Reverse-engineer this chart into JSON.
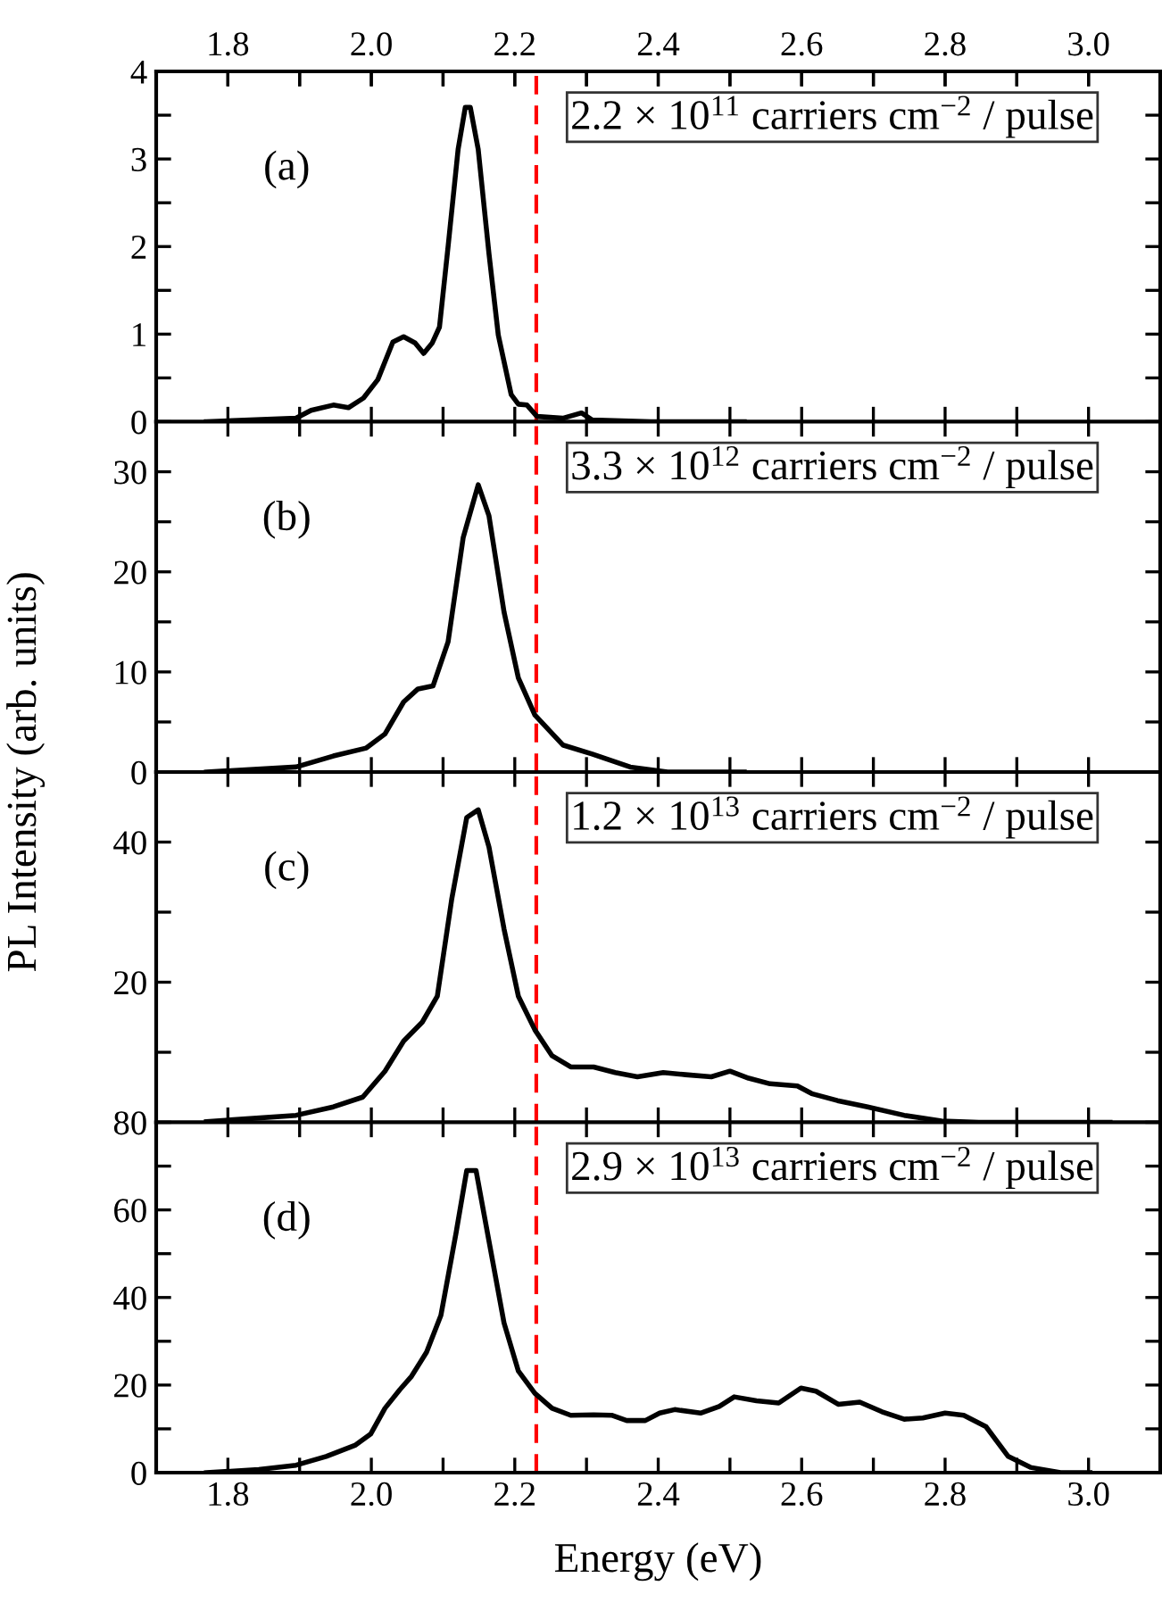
{
  "chart_data": [
    {
      "type": "line",
      "ylabel": "PL Intensity (arb. units)",
      "annotations": [
        "(a)",
        "2.2 × 10$^{11}$ carriers cm$^{−2}$ / pulse"
      ],
      "series": [
        {
          "color": "#000000",
          "x": [
            1.77,
            1.895,
            1.916,
            1.947,
            1.968,
            1.989,
            2.009,
            2.03,
            2.045,
            2.061,
            2.073,
            2.085,
            2.095,
            2.107,
            2.121,
            2.131,
            2.138,
            2.149,
            2.164,
            2.177,
            2.195,
            2.205,
            2.217,
            2.231,
            2.267,
            2.293,
            2.308,
            2.39,
            2.52
          ],
          "values": [
            0,
            0.04,
            0.13,
            0.19,
            0.16,
            0.27,
            0.48,
            0.91,
            0.97,
            0.9,
            0.78,
            0.9,
            1.08,
            2.0,
            3.11,
            3.59,
            3.59,
            3.11,
            1.92,
            0.99,
            0.31,
            0.2,
            0.19,
            0.06,
            0.04,
            0.1,
            0.02,
            0,
            0
          ]
        }
      ],
      "xlim": [
        1.7,
        3.1
      ],
      "xticks": [
        {
          "value": 1.8,
          "label": null
        },
        {
          "value": 1.9,
          "label": null
        },
        {
          "value": 2.0,
          "label": null
        },
        {
          "value": 2.1,
          "label": null
        },
        {
          "value": 2.2,
          "label": null
        },
        {
          "value": 2.3,
          "label": null
        },
        {
          "value": 2.4,
          "label": null
        },
        {
          "value": 2.5,
          "label": null
        },
        {
          "value": 2.6,
          "label": null
        },
        {
          "value": 2.7,
          "label": null
        },
        {
          "value": 2.8,
          "label": null
        },
        {
          "value": 2.9,
          "label": null
        },
        {
          "value": 3.0,
          "label": null
        }
      ],
      "x2lim": [
        1.7,
        3.1
      ],
      "x2ticks": [
        1.8,
        {
          "value": 1.9,
          "label": null
        },
        {
          "value": 2,
          "label": "2.0"
        },
        {
          "value": 2.1,
          "label": null
        },
        2.2,
        {
          "value": 2.3,
          "label": null
        },
        2.4,
        {
          "value": 2.5,
          "label": null
        },
        2.6,
        {
          "value": 2.7,
          "label": null
        },
        2.8,
        {
          "value": 2.9,
          "label": null
        },
        {
          "value": 3,
          "label": "3.0"
        }
      ],
      "ylim": [
        0,
        4
      ],
      "yticks": [
        0,
        {
          "value": 0.5,
          "label": null
        },
        1,
        {
          "value": 1.5,
          "label": null
        },
        2,
        {
          "value": 2.5,
          "label": null
        },
        3,
        {
          "value": 3.5,
          "label": null
        },
        4
      ],
      "tick_labels": "y",
      "ref_lines": [
        {
          "axis": "x",
          "value": 2.23,
          "color": "#ff0000",
          "line_style": "dashed"
        }
      ],
      "grid": false
    },
    {
      "type": "line",
      "annotations": [
        "(b)",
        "3.3 × 10$^{12}$ carriers cm$^{−2}$ / pulse"
      ],
      "series": [
        {
          "color": "#000000",
          "x": [
            1.77,
            1.895,
            1.947,
            1.993,
            2.019,
            2.045,
            2.065,
            2.086,
            2.107,
            2.128,
            2.149,
            2.164,
            2.185,
            2.205,
            2.228,
            2.267,
            2.308,
            2.361,
            2.413,
            2.52
          ],
          "values": [
            0,
            0.5,
            1.6,
            2.4,
            3.8,
            7.0,
            8.3,
            8.6,
            13.0,
            23.4,
            28.7,
            25.6,
            16.0,
            9.4,
            5.7,
            2.7,
            1.8,
            0.5,
            0,
            0
          ]
        }
      ],
      "xlim": [
        1.7,
        3.1
      ],
      "xticks": [
        {
          "value": 1.8,
          "label": null
        },
        {
          "value": 1.9,
          "label": null
        },
        {
          "value": 2.0,
          "label": null
        },
        {
          "value": 2.1,
          "label": null
        },
        {
          "value": 2.2,
          "label": null
        },
        {
          "value": 2.3,
          "label": null
        },
        {
          "value": 2.4,
          "label": null
        },
        {
          "value": 2.5,
          "label": null
        },
        {
          "value": 2.6,
          "label": null
        },
        {
          "value": 2.7,
          "label": null
        },
        {
          "value": 2.8,
          "label": null
        },
        {
          "value": 2.9,
          "label": null
        },
        {
          "value": 3.0,
          "label": null
        }
      ],
      "ylim": [
        0,
        35
      ],
      "yticks": [
        0,
        {
          "value": 5,
          "label": null
        },
        10,
        {
          "value": 15,
          "label": null
        },
        20,
        {
          "value": 25,
          "label": null
        },
        30
      ],
      "tick_labels": "y",
      "ref_lines": [
        {
          "axis": "x",
          "value": 2.23,
          "color": "#ff0000",
          "line_style": "dashed"
        }
      ],
      "grid": false
    },
    {
      "type": "line",
      "annotations": [
        "(c)",
        "1.2 × 10$^{13}$ carriers cm$^{−2}$ / pulse"
      ],
      "series": [
        {
          "color": "#000000",
          "x": [
            1.77,
            1.895,
            1.947,
            1.988,
            2.019,
            2.045,
            2.071,
            2.092,
            2.112,
            2.133,
            2.149,
            2.164,
            2.185,
            2.205,
            2.228,
            2.252,
            2.278,
            2.31,
            2.34,
            2.371,
            2.407,
            2.438,
            2.474,
            2.5,
            2.526,
            2.556,
            2.594,
            2.614,
            2.65,
            2.692,
            2.743,
            2.795,
            2.847,
            2.93,
            3.03
          ],
          "values": [
            0.1,
            1.0,
            2.2,
            3.6,
            7.3,
            11.6,
            14.3,
            18.0,
            31.8,
            43.5,
            44.6,
            39.3,
            27.6,
            18.0,
            13.2,
            9.5,
            7.9,
            7.9,
            7.1,
            6.5,
            7.1,
            6.8,
            6.5,
            7.3,
            6.3,
            5.5,
            5.2,
            4.1,
            3.1,
            2.2,
            1.0,
            0.2,
            0,
            0,
            0
          ]
        }
      ],
      "xlim": [
        1.7,
        3.1
      ],
      "xticks": [
        {
          "value": 1.8,
          "label": null
        },
        {
          "value": 1.9,
          "label": null
        },
        {
          "value": 2.0,
          "label": null
        },
        {
          "value": 2.1,
          "label": null
        },
        {
          "value": 2.2,
          "label": null
        },
        {
          "value": 2.3,
          "label": null
        },
        {
          "value": 2.4,
          "label": null
        },
        {
          "value": 2.5,
          "label": null
        },
        {
          "value": 2.6,
          "label": null
        },
        {
          "value": 2.7,
          "label": null
        },
        {
          "value": 2.8,
          "label": null
        },
        {
          "value": 2.9,
          "label": null
        },
        {
          "value": 3.0,
          "label": null
        }
      ],
      "ylim": [
        0,
        50
      ],
      "yticks": [
        {
          "value": 0,
          "label": null
        },
        {
          "value": 10,
          "label": null
        },
        20,
        {
          "value": 30,
          "label": null
        },
        40
      ],
      "tick_labels": "y",
      "ref_lines": [
        {
          "axis": "x",
          "value": 2.23,
          "color": "#ff0000",
          "line_style": "dashed"
        }
      ],
      "grid": false
    },
    {
      "type": "line",
      "xlabel": "Energy (eV)",
      "annotations": [
        "(d)",
        "2.9 × 10$^{13}$ carriers cm$^{−2}$ / pulse"
      ],
      "series": [
        {
          "color": "#000000",
          "x": [
            1.77,
            1.843,
            1.895,
            1.937,
            1.978,
            1.999,
            2.019,
            2.04,
            2.056,
            2.077,
            2.097,
            2.118,
            2.133,
            2.146,
            2.164,
            2.185,
            2.205,
            2.228,
            2.252,
            2.278,
            2.31,
            2.335,
            2.356,
            2.382,
            2.402,
            2.423,
            2.459,
            2.485,
            2.506,
            2.537,
            2.568,
            2.599,
            2.62,
            2.651,
            2.681,
            2.712,
            2.743,
            2.769,
            2.8,
            2.826,
            2.857,
            2.888,
            2.919,
            2.961,
            3.002
          ],
          "values": [
            0,
            0.7,
            1.7,
            3.7,
            6.3,
            8.8,
            14.7,
            19.0,
            22.0,
            27.5,
            35.9,
            54.6,
            69.0,
            69.0,
            52.9,
            34.2,
            23.2,
            18.1,
            14.7,
            13.1,
            13.2,
            13.1,
            11.9,
            11.9,
            13.6,
            14.4,
            13.6,
            15.1,
            17.3,
            16.4,
            15.9,
            19.3,
            18.6,
            15.6,
            16.1,
            13.9,
            12.2,
            12.5,
            13.6,
            13.1,
            10.5,
            3.7,
            1.2,
            0,
            0
          ]
        }
      ],
      "xlim": [
        1.7,
        3.1
      ],
      "xticks": [
        1.8,
        {
          "value": 1.9,
          "label": null
        },
        {
          "value": 2,
          "label": "2.0"
        },
        {
          "value": 2.1,
          "label": null
        },
        2.2,
        {
          "value": 2.3,
          "label": null
        },
        2.4,
        {
          "value": 2.5,
          "label": null
        },
        2.6,
        {
          "value": 2.7,
          "label": null
        },
        2.8,
        {
          "value": 2.9,
          "label": null
        },
        {
          "value": 3,
          "label": "3.0"
        }
      ],
      "ylim": [
        0,
        80
      ],
      "yticks": [
        0,
        {
          "value": 10,
          "label": null
        },
        20,
        {
          "value": 30,
          "label": null
        },
        40,
        {
          "value": 50,
          "label": null
        },
        60,
        {
          "value": 70,
          "label": null
        },
        80
      ],
      "ref_lines": [
        {
          "axis": "x",
          "value": 2.23,
          "color": "#ff0000",
          "line_style": "dashed"
        }
      ],
      "grid": false
    }
  ]
}
